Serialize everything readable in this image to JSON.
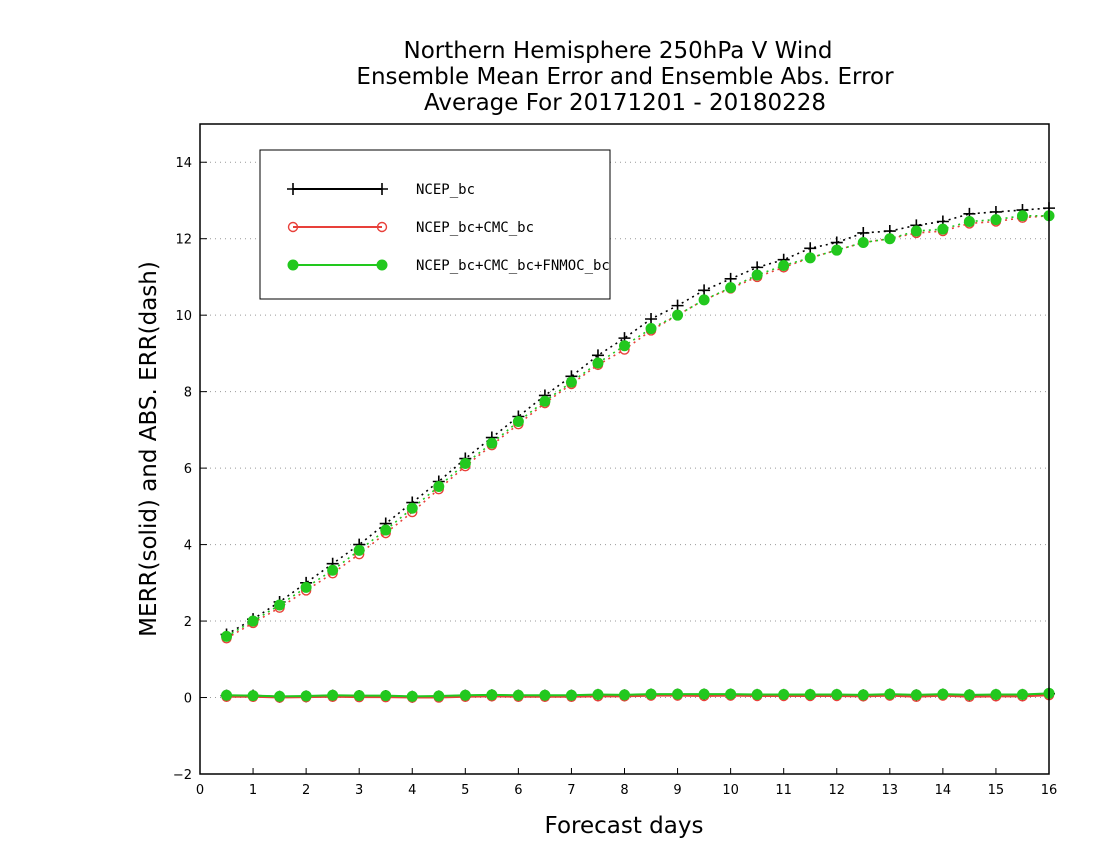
{
  "chart_data": {
    "type": "line",
    "title_lines": [
      "Northern Hemisphere 250hPa V Wind",
      "Ensemble Mean Error and Ensemble Abs. Error",
      "Average For 20171201 - 20180228"
    ],
    "xlabel": "Forecast days",
    "ylabel": "MERR(solid) and ABS. ERR(dash)",
    "xlim": [
      0,
      16
    ],
    "ylim": [
      -2,
      15
    ],
    "x_ticks": [
      0,
      1,
      2,
      3,
      4,
      5,
      6,
      7,
      8,
      9,
      10,
      11,
      12,
      13,
      14,
      15,
      16
    ],
    "y_ticks": [
      -2,
      0,
      2,
      4,
      6,
      8,
      10,
      12,
      14
    ],
    "grid": "horizontal dotted",
    "legend_position": "top-left",
    "x": [
      0.5,
      1,
      1.5,
      2,
      2.5,
      3,
      3.5,
      4,
      4.5,
      5,
      5.5,
      6,
      6.5,
      7,
      7.5,
      8,
      8.5,
      9,
      9.5,
      10,
      10.5,
      11,
      11.5,
      12,
      12.5,
      13,
      13.5,
      14,
      14.5,
      15,
      15.5,
      16
    ],
    "series": [
      {
        "name": "NCEP_bc",
        "color": "#000000",
        "marker": "plus",
        "abs_err": [
          1.65,
          2.05,
          2.5,
          3.0,
          3.5,
          4.0,
          4.55,
          5.1,
          5.65,
          6.25,
          6.8,
          7.35,
          7.9,
          8.4,
          8.95,
          9.4,
          9.9,
          10.25,
          10.65,
          10.95,
          11.25,
          11.45,
          11.75,
          11.9,
          12.15,
          12.2,
          12.35,
          12.45,
          12.65,
          12.7,
          12.75,
          12.8
        ],
        "mean_err": [
          0.05,
          0.05,
          0.02,
          0.03,
          0.05,
          0.04,
          0.04,
          0.02,
          0.03,
          0.05,
          0.06,
          0.05,
          0.05,
          0.05,
          0.07,
          0.06,
          0.08,
          0.08,
          0.08,
          0.08,
          0.07,
          0.07,
          0.07,
          0.07,
          0.06,
          0.08,
          0.06,
          0.08,
          0.06,
          0.07,
          0.07,
          0.1
        ]
      },
      {
        "name": "NCEP_bc+CMC_bc",
        "color": "#e8403a",
        "marker": "open-circle",
        "abs_err": [
          1.55,
          1.95,
          2.35,
          2.8,
          3.25,
          3.75,
          4.3,
          4.85,
          5.45,
          6.05,
          6.6,
          7.15,
          7.7,
          8.2,
          8.7,
          9.1,
          9.6,
          10.0,
          10.4,
          10.7,
          11.0,
          11.25,
          11.5,
          11.7,
          11.9,
          12.0,
          12.15,
          12.2,
          12.4,
          12.45,
          12.55,
          12.6
        ],
        "mean_err": [
          0.02,
          0.02,
          0.0,
          0.01,
          0.02,
          0.01,
          0.01,
          0.0,
          0.0,
          0.02,
          0.03,
          0.02,
          0.02,
          0.02,
          0.03,
          0.03,
          0.05,
          0.05,
          0.04,
          0.05,
          0.04,
          0.04,
          0.04,
          0.04,
          0.03,
          0.05,
          0.02,
          0.05,
          0.02,
          0.03,
          0.03,
          0.06
        ]
      },
      {
        "name": "NCEP_bc+CMC_bc+FNMOC_bc",
        "color": "#22c81e",
        "marker": "filled-circle",
        "abs_err": [
          1.6,
          2.0,
          2.42,
          2.88,
          3.33,
          3.85,
          4.38,
          4.95,
          5.52,
          6.12,
          6.65,
          7.22,
          7.75,
          8.25,
          8.75,
          9.2,
          9.65,
          10.0,
          10.4,
          10.72,
          11.05,
          11.3,
          11.5,
          11.7,
          11.9,
          12.0,
          12.2,
          12.25,
          12.45,
          12.5,
          12.6,
          12.6
        ],
        "mean_err": [
          0.06,
          0.05,
          0.03,
          0.04,
          0.06,
          0.05,
          0.05,
          0.03,
          0.04,
          0.06,
          0.07,
          0.06,
          0.06,
          0.06,
          0.08,
          0.07,
          0.09,
          0.09,
          0.09,
          0.09,
          0.08,
          0.08,
          0.08,
          0.08,
          0.07,
          0.09,
          0.07,
          0.09,
          0.07,
          0.08,
          0.08,
          0.11
        ]
      }
    ]
  }
}
